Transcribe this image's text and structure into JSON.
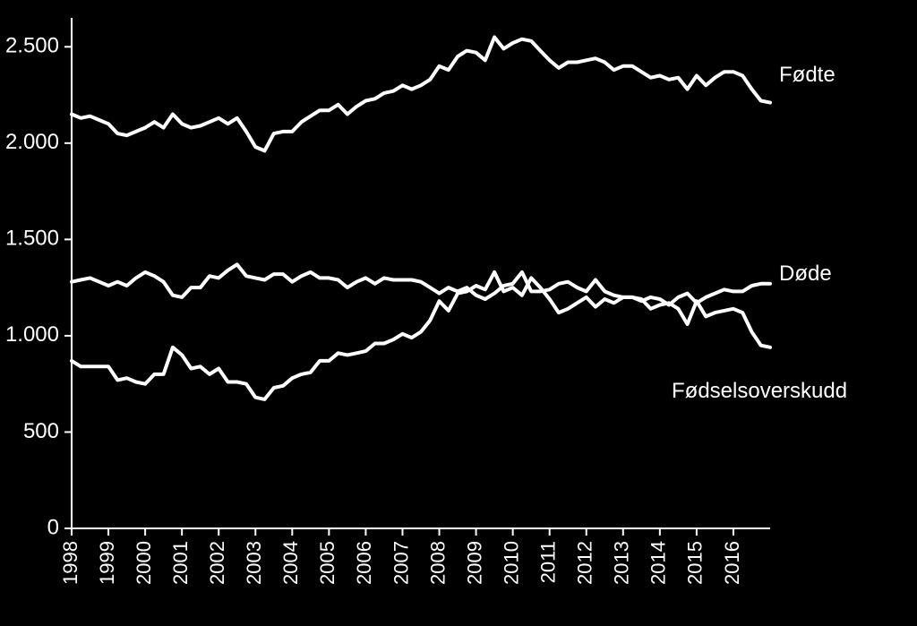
{
  "chart": {
    "type": "line",
    "background_color": "#000000",
    "line_color": "#ffffff",
    "text_color": "#ffffff",
    "line_width": 4,
    "font_family": "Arial",
    "y_axis": {
      "min": 0,
      "max": 2650,
      "ticks": [
        0,
        500,
        1000,
        1500,
        2000,
        2500
      ],
      "tick_labels": [
        "0",
        "500",
        "1.000",
        "1.500",
        "2.000",
        "2.500"
      ],
      "label_fontsize": 24
    },
    "x_axis": {
      "year_start": 1998,
      "year_end": 2016,
      "quarters_per_year": 4,
      "tick_labels": [
        "1998",
        "1999",
        "2000",
        "2001",
        "2002",
        "2003",
        "2004",
        "2005",
        "2006",
        "2007",
        "2008",
        "2009",
        "2010",
        "2011",
        "2012",
        "2013",
        "2014",
        "2015",
        "2016"
      ],
      "label_fontsize": 22,
      "label_rotation": 90
    },
    "series": [
      {
        "name": "Fodte",
        "label": "Fødte",
        "values": [
          2150,
          2130,
          2140,
          2120,
          2100,
          2050,
          2040,
          2060,
          2080,
          2110,
          2080,
          2150,
          2100,
          2080,
          2090,
          2110,
          2130,
          2100,
          2130,
          2060,
          1980,
          1960,
          2050,
          2060,
          2060,
          2110,
          2140,
          2170,
          2170,
          2200,
          2150,
          2190,
          2220,
          2230,
          2260,
          2270,
          2300,
          2280,
          2300,
          2330,
          2400,
          2380,
          2450,
          2480,
          2470,
          2430,
          2550,
          2490,
          2520,
          2540,
          2530,
          2480,
          2430,
          2390,
          2420,
          2420,
          2430,
          2440,
          2420,
          2380,
          2400,
          2400,
          2370,
          2340,
          2350,
          2330,
          2340,
          2280,
          2350,
          2300,
          2340,
          2370,
          2370,
          2350,
          2280,
          2220,
          2210
        ]
      },
      {
        "name": "Dode",
        "label": "Døde",
        "values": [
          1280,
          1290,
          1300,
          1280,
          1260,
          1280,
          1260,
          1300,
          1330,
          1310,
          1280,
          1210,
          1200,
          1250,
          1250,
          1310,
          1300,
          1340,
          1370,
          1310,
          1300,
          1290,
          1320,
          1320,
          1280,
          1310,
          1330,
          1300,
          1300,
          1290,
          1250,
          1280,
          1300,
          1270,
          1300,
          1290,
          1290,
          1290,
          1280,
          1250,
          1220,
          1250,
          1230,
          1250,
          1210,
          1190,
          1220,
          1260,
          1270,
          1330,
          1230,
          1230,
          1240,
          1270,
          1280,
          1250,
          1230,
          1290,
          1230,
          1210,
          1200,
          1200,
          1180,
          1200,
          1190,
          1160,
          1200,
          1220,
          1170,
          1200,
          1220,
          1240,
          1230,
          1230,
          1260,
          1270,
          1270
        ]
      },
      {
        "name": "Fodselsoverskudd",
        "label": "Fødselsoverskudd",
        "values": [
          870,
          840,
          840,
          840,
          840,
          770,
          780,
          760,
          750,
          800,
          800,
          940,
          900,
          830,
          840,
          800,
          830,
          760,
          760,
          750,
          680,
          670,
          730,
          740,
          780,
          800,
          810,
          870,
          870,
          910,
          900,
          910,
          920,
          960,
          960,
          980,
          1010,
          990,
          1020,
          1080,
          1180,
          1130,
          1220,
          1230,
          1260,
          1240,
          1330,
          1230,
          1250,
          1210,
          1300,
          1250,
          1190,
          1120,
          1140,
          1170,
          1200,
          1150,
          1190,
          1170,
          1200,
          1200,
          1190,
          1140,
          1160,
          1170,
          1140,
          1060,
          1180,
          1100,
          1120,
          1130,
          1140,
          1120,
          1020,
          950,
          940
        ]
      }
    ]
  }
}
